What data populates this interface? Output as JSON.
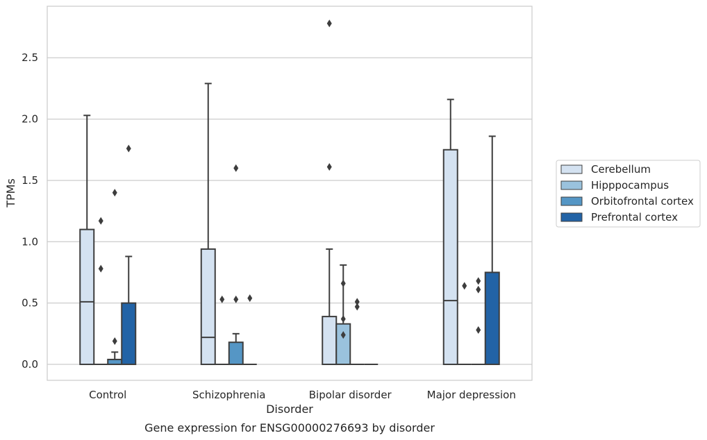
{
  "chart_data": {
    "type": "box",
    "title": "",
    "caption": "Gene expression for ENSG00000276693 by disorder",
    "xlabel": "Disorder",
    "ylabel": "TPMs",
    "categories": [
      "Control",
      "Schizophrenia",
      "Bipolar disorder",
      "Major depression"
    ],
    "ylim": [
      -0.13,
      2.92
    ],
    "yticks": [
      0.0,
      0.5,
      1.0,
      1.5,
      2.0,
      2.5
    ],
    "ytick_labels": [
      "0.0",
      "0.5",
      "1.0",
      "1.5",
      "2.0",
      "2.5"
    ],
    "grid": "horizontal",
    "legend_position": "right",
    "series": [
      {
        "name": "Cerebellum",
        "color": "#d4e2f1",
        "boxes": [
          {
            "q1": 0.0,
            "median": 0.51,
            "q3": 1.1,
            "whisker_low": 0.0,
            "whisker_high": 2.03,
            "outliers": []
          },
          {
            "q1": 0.0,
            "median": 0.22,
            "q3": 0.94,
            "whisker_low": 0.0,
            "whisker_high": 2.29,
            "outliers": []
          },
          {
            "q1": 0.0,
            "median": 0.0,
            "q3": 0.39,
            "whisker_low": 0.0,
            "whisker_high": 0.94,
            "outliers": [
              1.61,
              2.78
            ]
          },
          {
            "q1": 0.0,
            "median": 0.52,
            "q3": 1.75,
            "whisker_low": 0.0,
            "whisker_high": 2.16,
            "outliers": []
          }
        ]
      },
      {
        "name": "Hipppocampus",
        "color": "#9ac2dd",
        "boxes": [
          {
            "q1": 0.0,
            "median": 0.0,
            "q3": 0.0,
            "whisker_low": 0.0,
            "whisker_high": 0.0,
            "outliers": [
              0.78,
              1.17
            ]
          },
          {
            "q1": 0.0,
            "median": 0.0,
            "q3": 0.0,
            "whisker_low": 0.0,
            "whisker_high": 0.0,
            "outliers": [
              0.53
            ]
          },
          {
            "q1": 0.0,
            "median": 0.0,
            "q3": 0.33,
            "whisker_low": 0.0,
            "whisker_high": 0.81,
            "outliers": [
              0.24,
              0.37,
              0.66
            ]
          },
          {
            "q1": 0.0,
            "median": 0.0,
            "q3": 0.0,
            "whisker_low": 0.0,
            "whisker_high": 0.0,
            "outliers": [
              0.64
            ]
          }
        ]
      },
      {
        "name": "Orbitofrontal cortex",
        "color": "#5596c5",
        "boxes": [
          {
            "q1": 0.0,
            "median": 0.0,
            "q3": 0.04,
            "whisker_low": 0.0,
            "whisker_high": 0.1,
            "outliers": [
              0.19,
              1.4
            ]
          },
          {
            "q1": 0.0,
            "median": 0.0,
            "q3": 0.18,
            "whisker_low": 0.0,
            "whisker_high": 0.25,
            "outliers": [
              0.53,
              1.6
            ]
          },
          {
            "q1": 0.0,
            "median": 0.0,
            "q3": 0.0,
            "whisker_low": 0.0,
            "whisker_high": 0.0,
            "outliers": [
              0.47,
              0.51
            ]
          },
          {
            "q1": 0.0,
            "median": 0.0,
            "q3": 0.0,
            "whisker_low": 0.0,
            "whisker_high": 0.0,
            "outliers": [
              0.28,
              0.61,
              0.68
            ]
          }
        ]
      },
      {
        "name": "Prefrontal cortex",
        "color": "#2263a6",
        "boxes": [
          {
            "q1": 0.0,
            "median": 0.0,
            "q3": 0.5,
            "whisker_low": 0.0,
            "whisker_high": 0.88,
            "outliers": [
              1.76
            ]
          },
          {
            "q1": 0.0,
            "median": 0.0,
            "q3": 0.0,
            "whisker_low": 0.0,
            "whisker_high": 0.0,
            "outliers": [
              0.54
            ]
          },
          {
            "q1": 0.0,
            "median": 0.0,
            "q3": 0.0,
            "whisker_low": 0.0,
            "whisker_high": 0.0,
            "outliers": []
          },
          {
            "q1": 0.0,
            "median": 0.0,
            "q3": 0.75,
            "whisker_low": 0.0,
            "whisker_high": 1.86,
            "outliers": []
          }
        ]
      }
    ]
  }
}
